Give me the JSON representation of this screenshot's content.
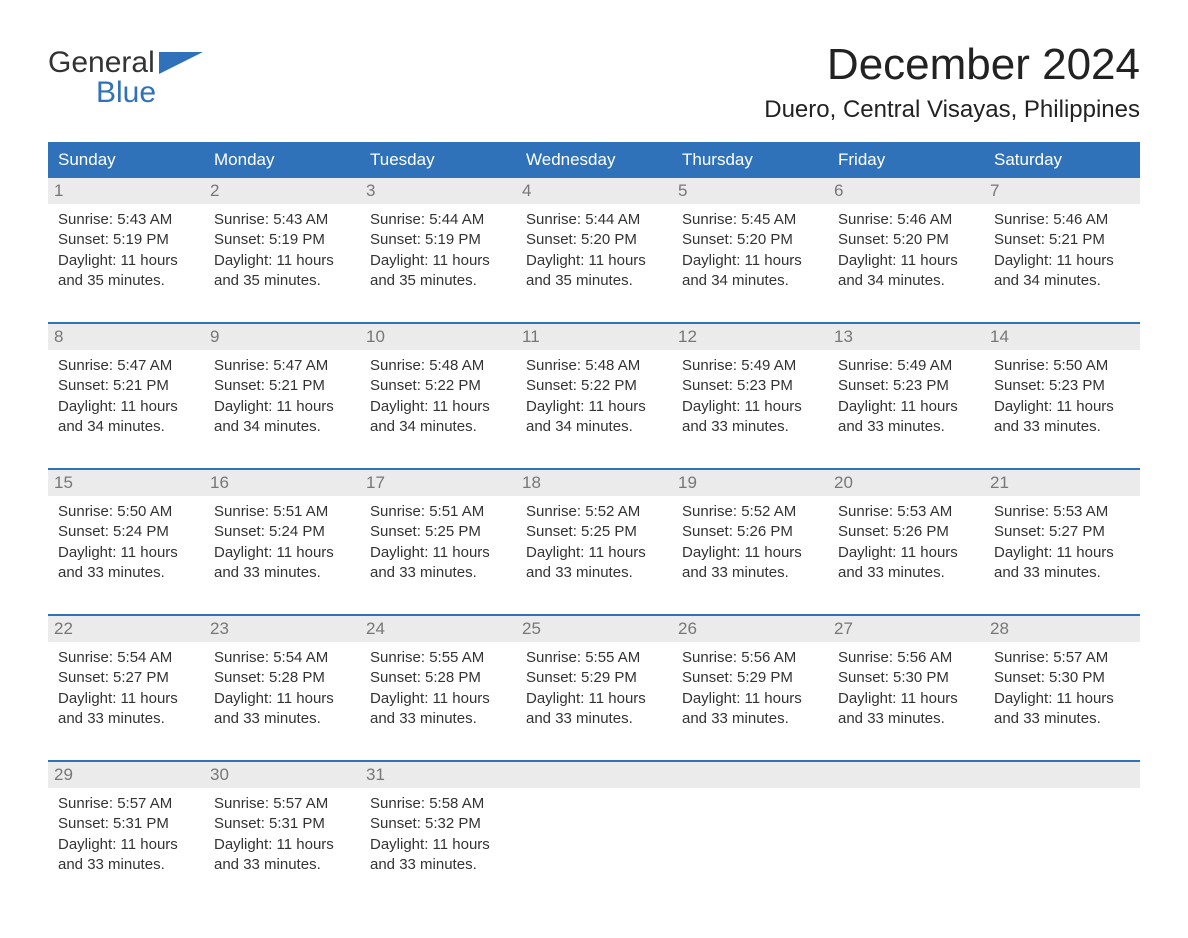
{
  "brand": {
    "line1": "General",
    "line2": "Blue",
    "accent_color": "#2f72b9"
  },
  "title": "December 2024",
  "location": "Duero, Central Visayas, Philippines",
  "colors": {
    "header_bg": "#2f72b9",
    "header_text": "#ffffff",
    "daynum_bg": "#ebebeb",
    "daynum_text": "#777777",
    "week_border": "#2f72b9",
    "body_text": "#333333",
    "page_bg": "#ffffff"
  },
  "weekdays": [
    "Sunday",
    "Monday",
    "Tuesday",
    "Wednesday",
    "Thursday",
    "Friday",
    "Saturday"
  ],
  "weeks": [
    [
      {
        "n": "1",
        "sunrise": "Sunrise: 5:43 AM",
        "sunset": "Sunset: 5:19 PM",
        "dl1": "Daylight: 11 hours",
        "dl2": "and 35 minutes."
      },
      {
        "n": "2",
        "sunrise": "Sunrise: 5:43 AM",
        "sunset": "Sunset: 5:19 PM",
        "dl1": "Daylight: 11 hours",
        "dl2": "and 35 minutes."
      },
      {
        "n": "3",
        "sunrise": "Sunrise: 5:44 AM",
        "sunset": "Sunset: 5:19 PM",
        "dl1": "Daylight: 11 hours",
        "dl2": "and 35 minutes."
      },
      {
        "n": "4",
        "sunrise": "Sunrise: 5:44 AM",
        "sunset": "Sunset: 5:20 PM",
        "dl1": "Daylight: 11 hours",
        "dl2": "and 35 minutes."
      },
      {
        "n": "5",
        "sunrise": "Sunrise: 5:45 AM",
        "sunset": "Sunset: 5:20 PM",
        "dl1": "Daylight: 11 hours",
        "dl2": "and 34 minutes."
      },
      {
        "n": "6",
        "sunrise": "Sunrise: 5:46 AM",
        "sunset": "Sunset: 5:20 PM",
        "dl1": "Daylight: 11 hours",
        "dl2": "and 34 minutes."
      },
      {
        "n": "7",
        "sunrise": "Sunrise: 5:46 AM",
        "sunset": "Sunset: 5:21 PM",
        "dl1": "Daylight: 11 hours",
        "dl2": "and 34 minutes."
      }
    ],
    [
      {
        "n": "8",
        "sunrise": "Sunrise: 5:47 AM",
        "sunset": "Sunset: 5:21 PM",
        "dl1": "Daylight: 11 hours",
        "dl2": "and 34 minutes."
      },
      {
        "n": "9",
        "sunrise": "Sunrise: 5:47 AM",
        "sunset": "Sunset: 5:21 PM",
        "dl1": "Daylight: 11 hours",
        "dl2": "and 34 minutes."
      },
      {
        "n": "10",
        "sunrise": "Sunrise: 5:48 AM",
        "sunset": "Sunset: 5:22 PM",
        "dl1": "Daylight: 11 hours",
        "dl2": "and 34 minutes."
      },
      {
        "n": "11",
        "sunrise": "Sunrise: 5:48 AM",
        "sunset": "Sunset: 5:22 PM",
        "dl1": "Daylight: 11 hours",
        "dl2": "and 34 minutes."
      },
      {
        "n": "12",
        "sunrise": "Sunrise: 5:49 AM",
        "sunset": "Sunset: 5:23 PM",
        "dl1": "Daylight: 11 hours",
        "dl2": "and 33 minutes."
      },
      {
        "n": "13",
        "sunrise": "Sunrise: 5:49 AM",
        "sunset": "Sunset: 5:23 PM",
        "dl1": "Daylight: 11 hours",
        "dl2": "and 33 minutes."
      },
      {
        "n": "14",
        "sunrise": "Sunrise: 5:50 AM",
        "sunset": "Sunset: 5:23 PM",
        "dl1": "Daylight: 11 hours",
        "dl2": "and 33 minutes."
      }
    ],
    [
      {
        "n": "15",
        "sunrise": "Sunrise: 5:50 AM",
        "sunset": "Sunset: 5:24 PM",
        "dl1": "Daylight: 11 hours",
        "dl2": "and 33 minutes."
      },
      {
        "n": "16",
        "sunrise": "Sunrise: 5:51 AM",
        "sunset": "Sunset: 5:24 PM",
        "dl1": "Daylight: 11 hours",
        "dl2": "and 33 minutes."
      },
      {
        "n": "17",
        "sunrise": "Sunrise: 5:51 AM",
        "sunset": "Sunset: 5:25 PM",
        "dl1": "Daylight: 11 hours",
        "dl2": "and 33 minutes."
      },
      {
        "n": "18",
        "sunrise": "Sunrise: 5:52 AM",
        "sunset": "Sunset: 5:25 PM",
        "dl1": "Daylight: 11 hours",
        "dl2": "and 33 minutes."
      },
      {
        "n": "19",
        "sunrise": "Sunrise: 5:52 AM",
        "sunset": "Sunset: 5:26 PM",
        "dl1": "Daylight: 11 hours",
        "dl2": "and 33 minutes."
      },
      {
        "n": "20",
        "sunrise": "Sunrise: 5:53 AM",
        "sunset": "Sunset: 5:26 PM",
        "dl1": "Daylight: 11 hours",
        "dl2": "and 33 minutes."
      },
      {
        "n": "21",
        "sunrise": "Sunrise: 5:53 AM",
        "sunset": "Sunset: 5:27 PM",
        "dl1": "Daylight: 11 hours",
        "dl2": "and 33 minutes."
      }
    ],
    [
      {
        "n": "22",
        "sunrise": "Sunrise: 5:54 AM",
        "sunset": "Sunset: 5:27 PM",
        "dl1": "Daylight: 11 hours",
        "dl2": "and 33 minutes."
      },
      {
        "n": "23",
        "sunrise": "Sunrise: 5:54 AM",
        "sunset": "Sunset: 5:28 PM",
        "dl1": "Daylight: 11 hours",
        "dl2": "and 33 minutes."
      },
      {
        "n": "24",
        "sunrise": "Sunrise: 5:55 AM",
        "sunset": "Sunset: 5:28 PM",
        "dl1": "Daylight: 11 hours",
        "dl2": "and 33 minutes."
      },
      {
        "n": "25",
        "sunrise": "Sunrise: 5:55 AM",
        "sunset": "Sunset: 5:29 PM",
        "dl1": "Daylight: 11 hours",
        "dl2": "and 33 minutes."
      },
      {
        "n": "26",
        "sunrise": "Sunrise: 5:56 AM",
        "sunset": "Sunset: 5:29 PM",
        "dl1": "Daylight: 11 hours",
        "dl2": "and 33 minutes."
      },
      {
        "n": "27",
        "sunrise": "Sunrise: 5:56 AM",
        "sunset": "Sunset: 5:30 PM",
        "dl1": "Daylight: 11 hours",
        "dl2": "and 33 minutes."
      },
      {
        "n": "28",
        "sunrise": "Sunrise: 5:57 AM",
        "sunset": "Sunset: 5:30 PM",
        "dl1": "Daylight: 11 hours",
        "dl2": "and 33 minutes."
      }
    ],
    [
      {
        "n": "29",
        "sunrise": "Sunrise: 5:57 AM",
        "sunset": "Sunset: 5:31 PM",
        "dl1": "Daylight: 11 hours",
        "dl2": "and 33 minutes."
      },
      {
        "n": "30",
        "sunrise": "Sunrise: 5:57 AM",
        "sunset": "Sunset: 5:31 PM",
        "dl1": "Daylight: 11 hours",
        "dl2": "and 33 minutes."
      },
      {
        "n": "31",
        "sunrise": "Sunrise: 5:58 AM",
        "sunset": "Sunset: 5:32 PM",
        "dl1": "Daylight: 11 hours",
        "dl2": "and 33 minutes."
      },
      {
        "n": "",
        "sunrise": "",
        "sunset": "",
        "dl1": "",
        "dl2": ""
      },
      {
        "n": "",
        "sunrise": "",
        "sunset": "",
        "dl1": "",
        "dl2": ""
      },
      {
        "n": "",
        "sunrise": "",
        "sunset": "",
        "dl1": "",
        "dl2": ""
      },
      {
        "n": "",
        "sunrise": "",
        "sunset": "",
        "dl1": "",
        "dl2": ""
      }
    ]
  ]
}
